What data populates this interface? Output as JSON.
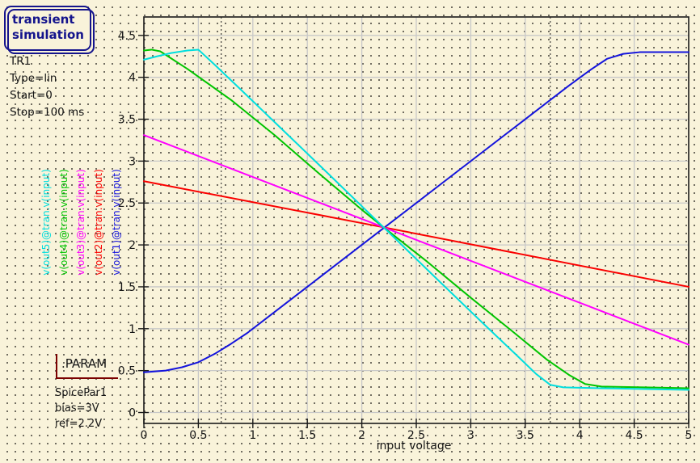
{
  "background": {
    "color": "#f9f3da",
    "dot_color": "#4a463e"
  },
  "simulation_box": {
    "line1": "transient",
    "line2": "simulation",
    "color": "#14148c"
  },
  "tr1": {
    "lines": [
      "TR1",
      "Type=lin",
      "Start=0",
      "Stop=100 ms"
    ]
  },
  "param_block": {
    "title": ".PARAM",
    "bracket_color": "#7a0000",
    "lines": [
      "SpicePar1",
      "bias=3V",
      "ref=2.2V"
    ]
  },
  "signal_labels": [
    {
      "label": "v(out5)@tran.v(input)",
      "color": "#00dede"
    },
    {
      "label": "v(out4)@tran.v(input)",
      "color": "#00c400"
    },
    {
      "label": "v(out3)@tran.v(input)",
      "color": "#ff00ff"
    },
    {
      "label": "v(out2)@tran.v(input)",
      "color": "#fa0000"
    },
    {
      "label": "v(out1)@tran.v(input)",
      "color": "#1414dc"
    }
  ],
  "chart_data": {
    "type": "line",
    "title": "",
    "xlabel": "input voltage",
    "ylabel": "",
    "xlim": [
      0,
      5
    ],
    "ylim": [
      -0.13,
      4.72
    ],
    "x_ticks": [
      0,
      0.5,
      1,
      1.5,
      2,
      2.5,
      3,
      3.5,
      4,
      4.5,
      5
    ],
    "y_ticks": [
      0,
      0.5,
      1,
      1.5,
      2,
      2.5,
      3,
      3.5,
      4,
      4.5
    ],
    "grid": true,
    "grid_color": "#c8c8c8",
    "frame_color": "#1a1a1a",
    "legend_position": "none",
    "cursors_x": [
      0.71,
      3.73
    ],
    "crossing_point": [
      2.2,
      2.2
    ],
    "series": [
      {
        "name": "v(out1)@tran.v(input)",
        "color": "#1414dc",
        "points": [
          [
            0,
            0.48
          ],
          [
            0.2,
            0.5
          ],
          [
            0.35,
            0.54
          ],
          [
            0.5,
            0.6
          ],
          [
            0.65,
            0.7
          ],
          [
            0.8,
            0.82
          ],
          [
            0.95,
            0.95
          ],
          [
            1.1,
            1.1
          ],
          [
            1.6,
            1.6
          ],
          [
            2.2,
            2.2
          ],
          [
            2.8,
            2.8
          ],
          [
            3.4,
            3.4
          ],
          [
            3.9,
            3.9
          ],
          [
            4.1,
            4.09
          ],
          [
            4.25,
            4.22
          ],
          [
            4.4,
            4.28
          ],
          [
            4.55,
            4.3
          ],
          [
            5,
            4.3
          ]
        ]
      },
      {
        "name": "v(out2)@tran.v(input)",
        "color": "#fa0000",
        "points": [
          [
            0,
            2.76
          ],
          [
            2.2,
            2.21
          ],
          [
            5,
            1.5
          ]
        ]
      },
      {
        "name": "v(out3)@tran.v(input)",
        "color": "#ff00ff",
        "points": [
          [
            0,
            3.31
          ],
          [
            2.2,
            2.21
          ],
          [
            5,
            0.81
          ]
        ]
      },
      {
        "name": "v(out4)@tran.v(input)",
        "color": "#00c400",
        "points": [
          [
            0,
            4.32
          ],
          [
            0.07,
            4.33
          ],
          [
            0.15,
            4.31
          ],
          [
            0.4,
            4.1
          ],
          [
            0.8,
            3.73
          ],
          [
            1.2,
            3.31
          ],
          [
            1.6,
            2.86
          ],
          [
            2.0,
            2.42
          ],
          [
            2.2,
            2.21
          ],
          [
            2.6,
            1.8
          ],
          [
            3.0,
            1.37
          ],
          [
            3.4,
            0.95
          ],
          [
            3.7,
            0.63
          ],
          [
            3.9,
            0.45
          ],
          [
            4.05,
            0.34
          ],
          [
            4.2,
            0.31
          ],
          [
            4.6,
            0.3
          ],
          [
            5,
            0.29
          ]
        ]
      },
      {
        "name": "v(out5)@tran.v(input)",
        "color": "#00dede",
        "points": [
          [
            0,
            4.21
          ],
          [
            0.12,
            4.25
          ],
          [
            0.25,
            4.29
          ],
          [
            0.4,
            4.32
          ],
          [
            0.5,
            4.33
          ],
          [
            0.65,
            4.15
          ],
          [
            0.9,
            3.84
          ],
          [
            1.3,
            3.34
          ],
          [
            1.7,
            2.84
          ],
          [
            2.2,
            2.21
          ],
          [
            2.7,
            1.58
          ],
          [
            3.1,
            1.08
          ],
          [
            3.4,
            0.71
          ],
          [
            3.6,
            0.46
          ],
          [
            3.73,
            0.33
          ],
          [
            3.85,
            0.3
          ],
          [
            4.2,
            0.29
          ],
          [
            4.6,
            0.28
          ],
          [
            5,
            0.27
          ]
        ]
      }
    ]
  }
}
